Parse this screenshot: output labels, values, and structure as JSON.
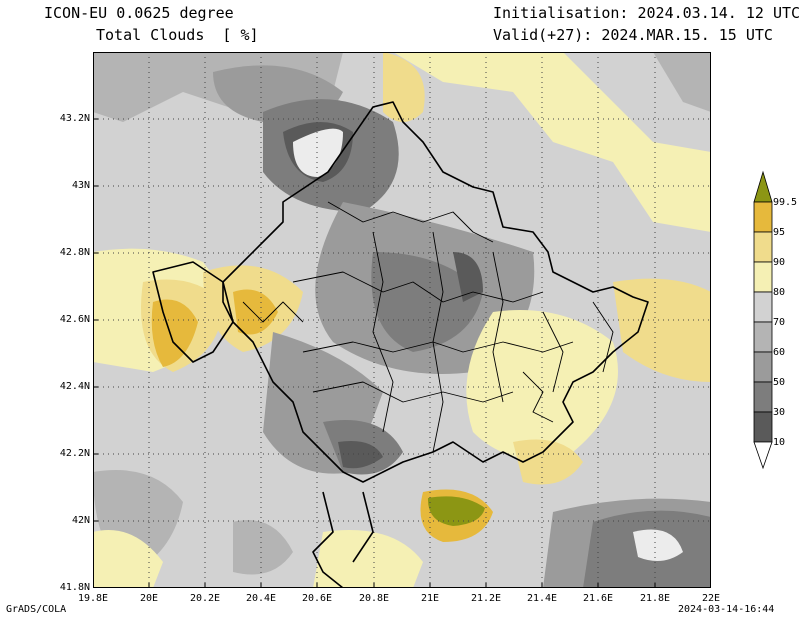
{
  "header": {
    "model": "ICON-EU 0.0625 degree",
    "variable": "Total Clouds  [ %]",
    "init": "Initialisation: 2024.03.14. 12 UTC",
    "valid": "Valid(+27): 2024.MAR.15. 15 UTC"
  },
  "footer": {
    "credit": "GrADS/COLA",
    "timestamp": "2024-03-14-16:44"
  },
  "axes": {
    "lat_labels": [
      "43.2N",
      "43N",
      "42.8N",
      "42.6N",
      "42.4N",
      "42.2N",
      "42N",
      "41.8N"
    ],
    "lon_labels": [
      "19.8E",
      "20E",
      "20.2E",
      "20.4E",
      "20.6E",
      "20.8E",
      "21E",
      "21.2E",
      "21.4E",
      "21.6E",
      "21.8E",
      "22E"
    ]
  },
  "colorbar": {
    "levels": [
      "99.5",
      "95",
      "90",
      "80",
      "70",
      "60",
      "50",
      "30",
      "10"
    ],
    "colors": {
      "lt10": "#ffffff",
      "10-30": "#5a5a5a",
      "30-50": "#7d7d7d",
      "50-60": "#9b9b9b",
      "60-70": "#b4b4b4",
      "70-80": "#d2d2d2",
      "80-90": "#f5f0b4",
      "90-95": "#f0dc8c",
      "95-99.5": "#e6b93c",
      "gt99.5": "#8c9614"
    }
  }
}
